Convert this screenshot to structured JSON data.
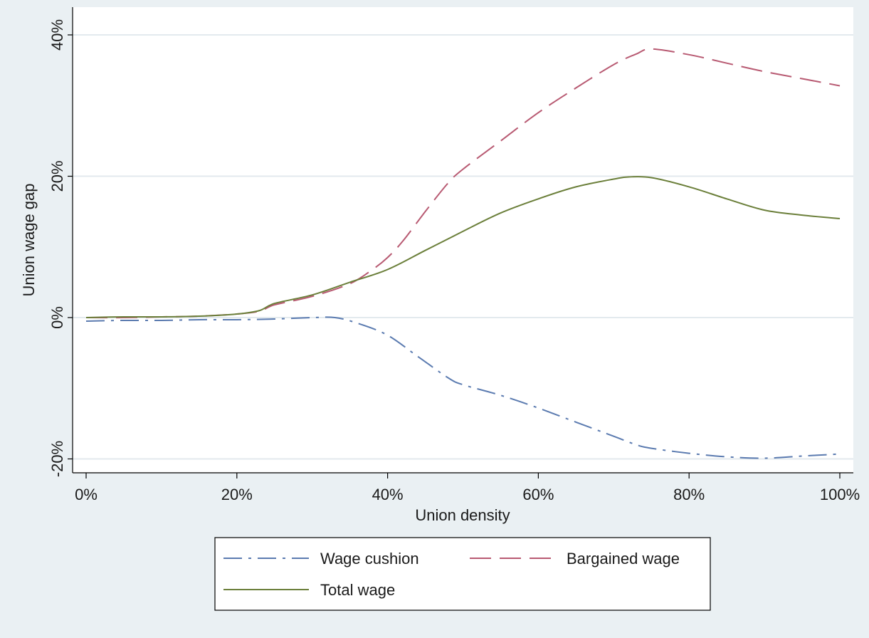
{
  "colors": {
    "background": "#eaf0f3",
    "plot_background": "#ffffff",
    "grid": "#e3eaee",
    "wage_cushion": "#5b7bb0",
    "bargained_wage": "#b85a72",
    "total_wage": "#6b7f3a"
  },
  "chart_data": {
    "type": "line",
    "title": "",
    "xlabel": "Union density",
    "ylabel": "Union wage gap",
    "xlim": [
      0,
      100
    ],
    "ylim": [
      -20,
      40
    ],
    "grid": true,
    "legend_position": "bottom",
    "x_ticks": [
      {
        "value": 0,
        "label": "0%"
      },
      {
        "value": 20,
        "label": "20%"
      },
      {
        "value": 40,
        "label": "40%"
      },
      {
        "value": 60,
        "label": "60%"
      },
      {
        "value": 80,
        "label": "80%"
      },
      {
        "value": 100,
        "label": "100%"
      }
    ],
    "y_ticks": [
      {
        "value": -20,
        "label": "-20%"
      },
      {
        "value": 0,
        "label": "0%"
      },
      {
        "value": 20,
        "label": "20%"
      },
      {
        "value": 40,
        "label": "40%"
      }
    ],
    "series": [
      {
        "name": "Wage cushion",
        "style": "dash-dot",
        "color_key": "wage_cushion",
        "x": [
          0,
          5,
          10,
          15,
          20,
          25,
          30,
          33,
          36,
          40,
          44,
          48,
          50,
          55,
          60,
          65,
          70,
          73,
          75,
          80,
          85,
          90,
          95,
          100
        ],
        "y": [
          -0.5,
          -0.4,
          -0.4,
          -0.3,
          -0.3,
          -0.2,
          0,
          0,
          -0.8,
          -2.5,
          -5.5,
          -8.5,
          -9.5,
          -11,
          -12.8,
          -14.8,
          -16.8,
          -18,
          -18.5,
          -19.2,
          -19.7,
          -19.9,
          -19.6,
          -19.3
        ]
      },
      {
        "name": "Bargained wage",
        "style": "long-dash",
        "color_key": "bargained_wage",
        "x": [
          0,
          5,
          10,
          15,
          20,
          23,
          25,
          30,
          35,
          38,
          40,
          42,
          45,
          48,
          50,
          55,
          60,
          65,
          70,
          73,
          75,
          80,
          85,
          90,
          95,
          100
        ],
        "y": [
          0,
          0,
          0.1,
          0.2,
          0.5,
          0.9,
          1.8,
          3,
          4.8,
          6.8,
          8.5,
          10.8,
          15,
          19,
          21,
          25,
          29,
          32.5,
          35.8,
          37.3,
          38,
          37.2,
          36,
          34.8,
          33.8,
          32.8
        ]
      },
      {
        "name": "Total wage",
        "style": "solid",
        "color_key": "total_wage",
        "x": [
          0,
          5,
          10,
          15,
          20,
          23,
          25,
          30,
          35,
          40,
          45,
          50,
          55,
          60,
          65,
          70,
          72,
          75,
          80,
          85,
          90,
          95,
          100
        ],
        "y": [
          0,
          0.1,
          0.1,
          0.2,
          0.5,
          1,
          2,
          3.2,
          5,
          6.8,
          9.5,
          12.2,
          14.8,
          16.8,
          18.5,
          19.6,
          19.9,
          19.8,
          18.5,
          16.8,
          15.2,
          14.5,
          14
        ]
      }
    ]
  }
}
